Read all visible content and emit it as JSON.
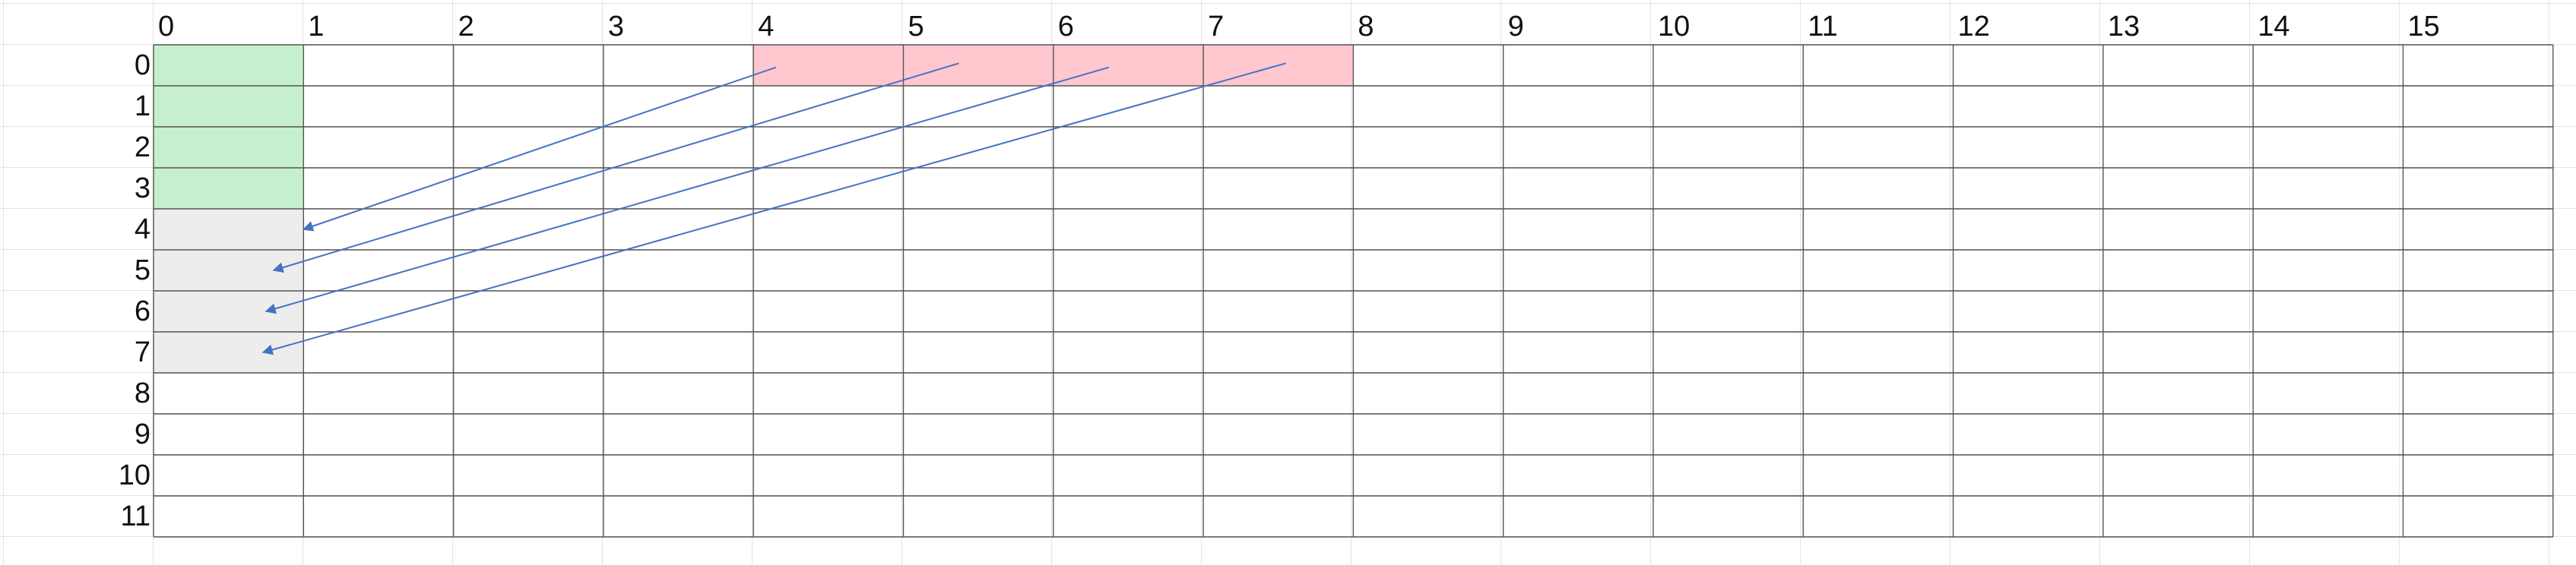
{
  "grid": {
    "columns": [
      "0",
      "1",
      "2",
      "3",
      "4",
      "5",
      "6",
      "7",
      "8",
      "9",
      "10",
      "11",
      "12",
      "13",
      "14",
      "15"
    ],
    "rows": [
      "0",
      "1",
      "2",
      "3",
      "4",
      "5",
      "6",
      "7",
      "8",
      "9",
      "10",
      "11"
    ]
  },
  "colors": {
    "green": "#c6efce",
    "pink": "#ffc7ce",
    "gray": "#ededed",
    "grid_line": "#555555",
    "arrow": "#4472c4"
  },
  "highlights": [
    {
      "name": "green-block",
      "color": "green",
      "col": 0,
      "rows": [
        0,
        1,
        2,
        3
      ]
    },
    {
      "name": "pink-block",
      "color": "pink",
      "row": 0,
      "cols": [
        4,
        5,
        6,
        7
      ]
    },
    {
      "name": "gray-block",
      "color": "gray",
      "col": 0,
      "rows": [
        4,
        5,
        6,
        7
      ]
    }
  ],
  "arrows": [
    {
      "from": {
        "row": 0,
        "col": 4
      },
      "to": {
        "row": 4,
        "col": 0
      }
    },
    {
      "from": {
        "row": 0,
        "col": 5
      },
      "to": {
        "row": 5,
        "col": 0
      }
    },
    {
      "from": {
        "row": 0,
        "col": 6
      },
      "to": {
        "row": 6,
        "col": 0
      }
    },
    {
      "from": {
        "row": 0,
        "col": 7
      },
      "to": {
        "row": 7,
        "col": 0
      }
    }
  ]
}
